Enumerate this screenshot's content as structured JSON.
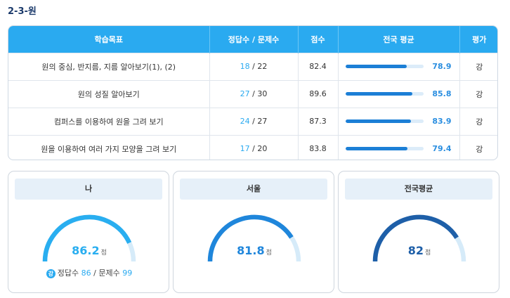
{
  "page_title": "2-3-원",
  "table": {
    "headers": [
      "학습목표",
      "정답수 / 문제수",
      "점수",
      "전국 평균",
      "평가"
    ],
    "rows": [
      {
        "goal": "원의 중심, 반지름, 지름 알아보기(1), (2)",
        "correct": "18",
        "total": "22",
        "score": "82.4",
        "avg": "78.9",
        "avg_pct": 78.9,
        "grade": "강"
      },
      {
        "goal": "원의 성질 알아보기",
        "correct": "27",
        "total": "30",
        "score": "89.6",
        "avg": "85.8",
        "avg_pct": 85.8,
        "grade": "강"
      },
      {
        "goal": "컴퍼스를 이용하여 원을 그려 보기",
        "correct": "24",
        "total": "27",
        "score": "87.3",
        "avg": "83.9",
        "avg_pct": 83.9,
        "grade": "강"
      },
      {
        "goal": "원을 이용하여 여러 가지 모양을 그려 보기",
        "correct": "17",
        "total": "20",
        "score": "83.8",
        "avg": "79.4",
        "avg_pct": 79.4,
        "grade": "강"
      }
    ]
  },
  "cards": [
    {
      "label": "나",
      "score": "86.2",
      "unit": "점",
      "pct": 86.2,
      "color": "#29aef0",
      "grade": "강",
      "correct_label": "정답수",
      "correct": "86",
      "total_label": "문제수",
      "total": "99"
    },
    {
      "label": "서울",
      "score": "81.8",
      "unit": "점",
      "pct": 81.8,
      "color": "#1f86db"
    },
    {
      "label": "전국평균",
      "score": "82",
      "unit": "점",
      "pct": 82,
      "color": "#1e5fa8"
    }
  ],
  "colors": {
    "track": "#d6ebf9",
    "header": "#2aaaf0"
  }
}
